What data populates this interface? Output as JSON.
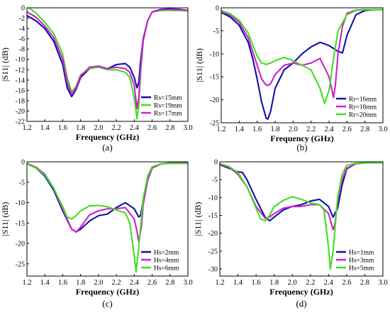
{
  "chart_data": [
    {
      "type": "line",
      "panel_label": "(a)",
      "xlabel": "Frequency (GHz)",
      "ylabel": "|S11| (dB)",
      "xlim": [
        1.2,
        3.0
      ],
      "ylim": [
        -22,
        0
      ],
      "xticks": [
        "1.2",
        "1.4",
        "1.6",
        "1.8",
        "2.0",
        "2.2",
        "2.4",
        "2.6",
        "2.8",
        "3.0"
      ],
      "yticks": [
        "0",
        "-2",
        "-4",
        "-6",
        "-8",
        "-10",
        "-12",
        "-14",
        "-16",
        "-18",
        "-20",
        "-22"
      ],
      "legend_position": "bottom-right",
      "series": [
        {
          "name": "Rs=15mm",
          "color": "#1010a8",
          "x": [
            1.2,
            1.3,
            1.4,
            1.5,
            1.6,
            1.65,
            1.7,
            1.75,
            1.8,
            1.9,
            2.0,
            2.1,
            2.2,
            2.3,
            2.35,
            2.4,
            2.43,
            2.45,
            2.47,
            2.5,
            2.55,
            2.6,
            2.7,
            2.8,
            2.9,
            3.0
          ],
          "y": [
            -1.5,
            -2.5,
            -4.0,
            -6.5,
            -11.0,
            -15.5,
            -17.2,
            -15.8,
            -13.5,
            -11.8,
            -11.3,
            -11.8,
            -11.0,
            -10.8,
            -11.5,
            -13.5,
            -15.5,
            -14.5,
            -10.5,
            -6.0,
            -2.5,
            -0.8,
            -0.3,
            -0.2,
            -0.3,
            -0.5
          ]
        },
        {
          "name": "Rs=19mm",
          "color": "#44dd22",
          "x": [
            1.2,
            1.3,
            1.4,
            1.5,
            1.6,
            1.65,
            1.7,
            1.75,
            1.8,
            1.9,
            2.0,
            2.1,
            2.2,
            2.3,
            2.35,
            2.4,
            2.43,
            2.45,
            2.47,
            2.5,
            2.55,
            2.6,
            2.7,
            2.8,
            2.9,
            3.0
          ],
          "y": [
            0.3,
            -1.0,
            -2.8,
            -5.0,
            -9.0,
            -13.5,
            -16.3,
            -15.2,
            -13.0,
            -11.8,
            -11.5,
            -12.0,
            -12.0,
            -12.5,
            -13.5,
            -17.5,
            -21.5,
            -19.0,
            -13.0,
            -6.5,
            -2.5,
            -0.8,
            -0.5,
            -0.5,
            -0.5,
            -0.6
          ]
        },
        {
          "name": "Rs=17mm",
          "color": "#cc22cc",
          "x": [
            1.2,
            1.3,
            1.4,
            1.5,
            1.6,
            1.65,
            1.7,
            1.75,
            1.8,
            1.9,
            2.0,
            2.1,
            2.2,
            2.3,
            2.35,
            2.4,
            2.43,
            2.45,
            2.47,
            2.5,
            2.55,
            2.6,
            2.7,
            2.8,
            2.9,
            3.0
          ],
          "y": [
            -0.8,
            -1.8,
            -3.5,
            -5.8,
            -10.0,
            -14.5,
            -16.8,
            -15.5,
            -13.2,
            -11.5,
            -11.3,
            -11.8,
            -11.5,
            -11.8,
            -12.5,
            -15.0,
            -19.5,
            -17.5,
            -12.0,
            -6.3,
            -2.5,
            -0.8,
            -0.4,
            -0.3,
            -0.4,
            -0.5
          ]
        }
      ]
    },
    {
      "type": "line",
      "panel_label": "(b)",
      "xlabel": "Frequency (GHz)",
      "ylabel": "|S11| (dB)",
      "xlim": [
        1.2,
        3.0
      ],
      "ylim": [
        -25,
        0
      ],
      "xticks": [
        "1.2",
        "1.4",
        "1.6",
        "1.8",
        "2.0",
        "2.2",
        "2.4",
        "2.6",
        "2.8",
        "3.0"
      ],
      "yticks": [
        "0",
        "-5",
        "-10",
        "-15",
        "-20",
        "-25"
      ],
      "legend_position": "bottom-right",
      "series": [
        {
          "name": "Rr=16mm",
          "color": "#1010a8",
          "x": [
            1.2,
            1.3,
            1.4,
            1.5,
            1.55,
            1.6,
            1.65,
            1.7,
            1.72,
            1.75,
            1.8,
            1.9,
            2.0,
            2.1,
            2.2,
            2.3,
            2.4,
            2.5,
            2.55,
            2.6,
            2.7,
            2.8,
            2.9,
            3.0
          ],
          "y": [
            -1.0,
            -2.0,
            -3.8,
            -7.5,
            -11.0,
            -15.5,
            -20.5,
            -24.0,
            -24.2,
            -22.5,
            -17.5,
            -13.5,
            -12.0,
            -10.0,
            -8.5,
            -7.5,
            -8.2,
            -9.5,
            -9.8,
            -6.0,
            -1.5,
            -0.6,
            -0.4,
            -0.4
          ]
        },
        {
          "name": "Rr=18mm",
          "color": "#cc22cc",
          "x": [
            1.2,
            1.3,
            1.4,
            1.5,
            1.55,
            1.6,
            1.65,
            1.7,
            1.72,
            1.75,
            1.8,
            1.9,
            2.0,
            2.1,
            2.2,
            2.3,
            2.4,
            2.45,
            2.47,
            2.5,
            2.55,
            2.6,
            2.7,
            2.8,
            2.9,
            3.0
          ],
          "y": [
            -0.8,
            -1.6,
            -3.2,
            -6.5,
            -9.5,
            -12.5,
            -15.5,
            -16.8,
            -16.9,
            -16.5,
            -14.5,
            -12.5,
            -12.0,
            -12.5,
            -12.0,
            -11.0,
            -15.0,
            -19.5,
            -17.0,
            -10.0,
            -4.0,
            -1.2,
            -0.5,
            -0.4,
            -0.4,
            -0.4
          ]
        },
        {
          "name": "Rr=20mm",
          "color": "#44dd22",
          "x": [
            1.2,
            1.3,
            1.4,
            1.5,
            1.55,
            1.6,
            1.65,
            1.7,
            1.75,
            1.8,
            1.9,
            2.0,
            2.1,
            2.2,
            2.3,
            2.35,
            2.4,
            2.45,
            2.5,
            2.6,
            2.7,
            2.8,
            2.9,
            3.0
          ],
          "y": [
            -0.6,
            -1.3,
            -2.7,
            -5.5,
            -8.0,
            -10.5,
            -12.0,
            -12.3,
            -12.0,
            -11.5,
            -10.8,
            -11.5,
            -12.5,
            -13.5,
            -17.5,
            -20.8,
            -18.0,
            -11.0,
            -5.0,
            -1.5,
            -0.6,
            -0.4,
            -0.4,
            -0.4
          ]
        }
      ]
    },
    {
      "type": "line",
      "panel_label": "(c)",
      "xlabel": "Frequency (GHz)",
      "ylabel": "|S11| (dB)",
      "xlim": [
        1.2,
        3.0
      ],
      "ylim": [
        -28,
        0
      ],
      "xticks": [
        "1.2",
        "1.4",
        "1.6",
        "1.8",
        "2.0",
        "2.2",
        "2.4",
        "2.6",
        "2.8",
        "3.0"
      ],
      "yticks": [
        "0",
        "-5",
        "-10",
        "-15",
        "-20",
        "-25"
      ],
      "legend_position": "bottom-right",
      "series": [
        {
          "name": "Hs=2mm",
          "color": "#1010a8",
          "x": [
            1.2,
            1.3,
            1.4,
            1.5,
            1.6,
            1.7,
            1.75,
            1.8,
            1.9,
            2.0,
            2.1,
            2.2,
            2.3,
            2.4,
            2.45,
            2.47,
            2.5,
            2.55,
            2.6,
            2.7,
            2.8,
            2.9,
            3.0
          ],
          "y": [
            -0.5,
            -1.5,
            -3.5,
            -7.0,
            -12.0,
            -16.5,
            -17.2,
            -16.5,
            -14.5,
            -13.2,
            -12.8,
            -11.2,
            -10.0,
            -11.5,
            -13.5,
            -13.2,
            -9.5,
            -4.5,
            -1.5,
            -0.5,
            -0.3,
            -0.3,
            -0.3
          ]
        },
        {
          "name": "Hs=4mm",
          "color": "#cc22cc",
          "x": [
            1.2,
            1.3,
            1.4,
            1.5,
            1.6,
            1.7,
            1.75,
            1.8,
            1.9,
            2.0,
            2.1,
            2.2,
            2.3,
            2.4,
            2.43,
            2.45,
            2.48,
            2.5,
            2.55,
            2.6,
            2.7,
            2.8,
            2.9,
            3.0
          ],
          "y": [
            -0.4,
            -1.3,
            -3.0,
            -6.5,
            -11.5,
            -16.5,
            -17.2,
            -16.0,
            -13.0,
            -12.0,
            -11.5,
            -11.5,
            -11.2,
            -14.0,
            -17.0,
            -19.5,
            -16.0,
            -10.5,
            -4.5,
            -1.5,
            -0.5,
            -0.3,
            -0.3,
            -0.3
          ]
        },
        {
          "name": "Hs=6mm",
          "color": "#44dd22",
          "x": [
            1.2,
            1.3,
            1.4,
            1.5,
            1.6,
            1.65,
            1.7,
            1.75,
            1.8,
            1.9,
            2.0,
            2.1,
            2.2,
            2.3,
            2.35,
            2.4,
            2.42,
            2.45,
            2.5,
            2.55,
            2.6,
            2.7,
            2.8,
            2.9,
            3.0
          ],
          "y": [
            -0.5,
            -1.5,
            -3.2,
            -6.5,
            -11.0,
            -13.5,
            -14.0,
            -13.2,
            -12.0,
            -10.8,
            -10.7,
            -11.0,
            -11.8,
            -12.5,
            -15.0,
            -23.0,
            -27.0,
            -21.0,
            -9.0,
            -3.5,
            -1.2,
            -0.5,
            -0.4,
            -0.4,
            -0.4
          ]
        }
      ]
    },
    {
      "type": "line",
      "panel_label": "(d)",
      "xlabel": "Frequency (GHz)",
      "ylabel": "|S11| (dB)",
      "xlim": [
        1.2,
        3.0
      ],
      "ylim": [
        -32,
        0
      ],
      "xticks": [
        "1.2",
        "1.4",
        "1.6",
        "1.8",
        "2.0",
        "2.2",
        "2.4",
        "2.6",
        "2.8",
        "3.0"
      ],
      "yticks": [
        "0",
        "-5",
        "-10",
        "-15",
        "-20",
        "-25",
        "-30"
      ],
      "legend_position": "bottom-right",
      "series": [
        {
          "name": "Hs=1mm",
          "color": "#1010a8",
          "x": [
            1.2,
            1.3,
            1.4,
            1.45,
            1.5,
            1.6,
            1.7,
            1.75,
            1.8,
            1.9,
            2.0,
            2.1,
            2.2,
            2.3,
            2.4,
            2.45,
            2.5,
            2.55,
            2.6,
            2.7,
            2.8,
            2.9,
            3.0
          ],
          "y": [
            -0.8,
            -1.8,
            -2.8,
            -3.0,
            -5.0,
            -10.5,
            -15.5,
            -16.5,
            -15.5,
            -13.5,
            -12.5,
            -12.0,
            -11.0,
            -10.5,
            -12.5,
            -15.5,
            -13.0,
            -6.5,
            -2.0,
            -0.5,
            -0.3,
            -0.3,
            -0.3
          ]
        },
        {
          "name": "Hs=3mm",
          "color": "#cc22cc",
          "x": [
            1.2,
            1.3,
            1.4,
            1.5,
            1.6,
            1.7,
            1.75,
            1.8,
            1.9,
            2.0,
            2.1,
            2.2,
            2.3,
            2.4,
            2.45,
            2.47,
            2.5,
            2.55,
            2.6,
            2.7,
            2.8,
            2.9,
            3.0
          ],
          "y": [
            -0.6,
            -1.5,
            -3.5,
            -7.0,
            -12.5,
            -15.8,
            -15.5,
            -14.5,
            -13.0,
            -12.5,
            -12.5,
            -12.0,
            -12.0,
            -14.5,
            -19.0,
            -17.5,
            -11.0,
            -5.0,
            -1.8,
            -0.5,
            -0.3,
            -0.3,
            -0.3
          ]
        },
        {
          "name": "Hs=5mm",
          "color": "#44dd22",
          "x": [
            1.2,
            1.3,
            1.4,
            1.5,
            1.6,
            1.65,
            1.7,
            1.75,
            1.8,
            1.9,
            2.0,
            2.1,
            2.2,
            2.3,
            2.35,
            2.4,
            2.42,
            2.45,
            2.5,
            2.55,
            2.6,
            2.7,
            2.8,
            2.9,
            3.0
          ],
          "y": [
            -0.5,
            -1.3,
            -3.0,
            -7.0,
            -13.0,
            -16.0,
            -16.5,
            -15.0,
            -12.5,
            -10.8,
            -9.8,
            -10.5,
            -11.5,
            -12.0,
            -13.5,
            -24.0,
            -30.0,
            -25.0,
            -10.0,
            -3.5,
            -1.0,
            -0.4,
            -0.3,
            -0.3,
            -0.3
          ]
        }
      ]
    }
  ]
}
